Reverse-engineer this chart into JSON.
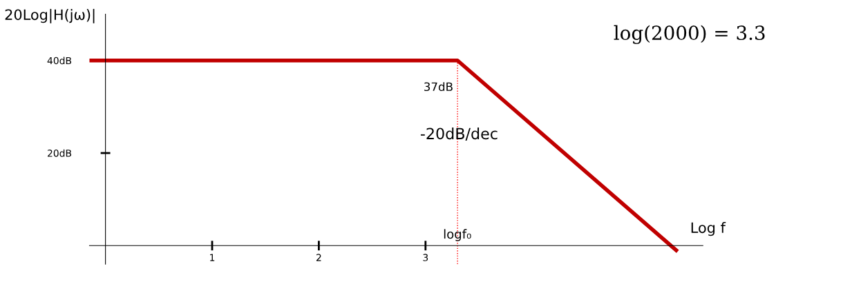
{
  "chart_data": {
    "type": "line",
    "ylabel": "20Log|H(jω)|",
    "xlabel": "Log f",
    "x": [
      -0.15,
      3.3,
      5.35
    ],
    "series": [
      {
        "color": "#c00000",
        "values": [
          40,
          40,
          -1
        ]
      }
    ],
    "xlim": [
      -0.15,
      5.6
    ],
    "ylim": [
      -4,
      50
    ],
    "xticks": [
      1,
      2,
      3
    ],
    "yticks": [
      {
        "value": 20,
        "label": "20dB"
      },
      {
        "value": 40,
        "label": "40dB"
      }
    ],
    "ref_lines": [
      {
        "axis": "x",
        "value": 3.3,
        "color": "#ff0000",
        "line_style": "dotted"
      }
    ],
    "annotations": [
      "37dB",
      "-20dB/dec",
      "logf₀",
      "log(2000) = 3.3"
    ],
    "grid": false,
    "legend": false,
    "line_style": "solid",
    "marker": "none"
  }
}
